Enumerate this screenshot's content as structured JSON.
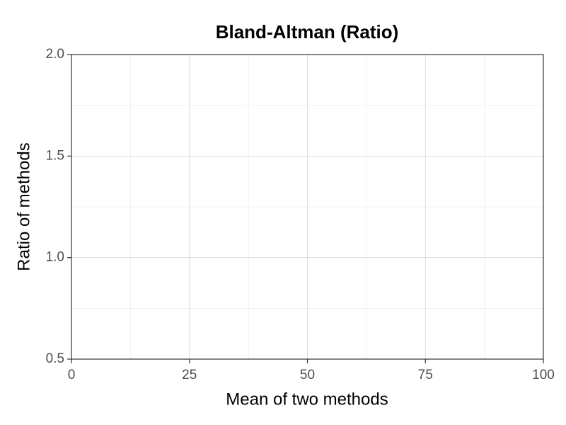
{
  "chart_data": {
    "type": "scatter",
    "title": "Bland-Altman (Ratio)",
    "x_label": "Mean of two methods",
    "y_label": "Ratio of methods",
    "xlim": [
      0,
      100
    ],
    "xticks": [
      0,
      25,
      50,
      75,
      100
    ],
    "ylim": [
      0.5,
      2
    ],
    "yticks": [
      0.5,
      {
        "value": 1,
        "label": "1.0"
      },
      1.5,
      {
        "value": 2,
        "label": "2.0"
      }
    ],
    "grid": true
  }
}
